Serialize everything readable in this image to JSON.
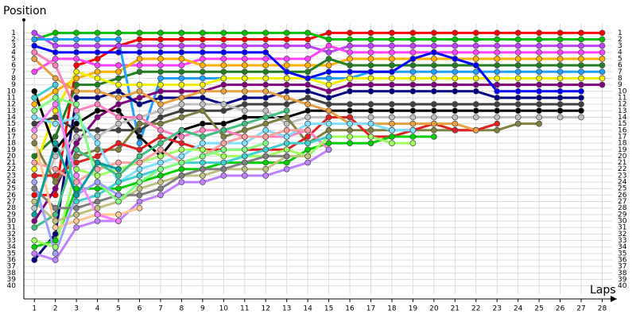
{
  "chart_data": {
    "type": "line",
    "y_label": "Position",
    "x_label": "Laps",
    "x": [
      1,
      2,
      3,
      4,
      5,
      6,
      7,
      8,
      9,
      10,
      11,
      12,
      13,
      14,
      15,
      16,
      17,
      18,
      19,
      20,
      21,
      22,
      23,
      24,
      25,
      26,
      27,
      28
    ],
    "xlim": [
      0.5,
      28.7
    ],
    "xticks": [
      1,
      2,
      3,
      4,
      5,
      6,
      7,
      8,
      9,
      10,
      11,
      12,
      13,
      14,
      15,
      16,
      17,
      18,
      19,
      20,
      21,
      22,
      23,
      24,
      25,
      26,
      27,
      28
    ],
    "ylim": [
      42,
      -1
    ],
    "yticks": [
      1,
      2,
      3,
      4,
      5,
      6,
      7,
      8,
      9,
      10,
      11,
      12,
      13,
      14,
      15,
      16,
      17,
      18,
      19,
      20,
      21,
      22,
      23,
      24,
      25,
      26,
      27,
      28,
      29,
      30,
      31,
      32,
      33,
      34,
      35,
      36,
      37,
      38,
      39,
      40
    ],
    "grid": true,
    "series": [
      {
        "color": "#ff0000",
        "values": [
          26,
          26,
          6,
          5,
          3,
          2,
          2,
          2,
          2,
          2,
          2,
          2,
          2,
          2,
          1,
          1,
          1,
          1,
          1,
          1,
          1,
          1,
          1,
          1,
          1,
          1,
          1,
          1
        ]
      },
      {
        "color": "#00c000",
        "values": [
          2,
          1,
          1,
          1,
          1,
          1,
          1,
          1,
          1,
          1,
          1,
          1,
          1,
          1,
          2,
          2,
          2,
          2,
          2,
          2,
          2,
          2,
          2,
          2,
          2,
          2,
          2,
          2
        ]
      },
      {
        "color": "#c040ff",
        "values": [
          1,
          3,
          3,
          3,
          3,
          3,
          3,
          3,
          3,
          3,
          3,
          3,
          3,
          3,
          4,
          3,
          3,
          3,
          3,
          3,
          3,
          3,
          3,
          3,
          3,
          3,
          3,
          3
        ]
      },
      {
        "color": "#ff40ff",
        "values": [
          7,
          5,
          5,
          6,
          6,
          6,
          6,
          6,
          5,
          5,
          5,
          5,
          5,
          5,
          3,
          4,
          4,
          4,
          4,
          4,
          4,
          4,
          4,
          4,
          4,
          4,
          4,
          4
        ]
      },
      {
        "color": "#ffb000",
        "values": [
          12,
          10,
          8,
          7,
          7,
          5,
          5,
          5,
          6,
          6,
          6,
          6,
          6,
          6,
          6,
          5,
          5,
          5,
          5,
          5,
          5,
          5,
          5,
          5,
          5,
          5,
          5,
          5
        ]
      },
      {
        "color": "#208020",
        "values": [
          20,
          17,
          9,
          9,
          8,
          7,
          7,
          7,
          7,
          7,
          7,
          7,
          7,
          7,
          5,
          6,
          6,
          6,
          6,
          6,
          6,
          6,
          6,
          6,
          6,
          6,
          6,
          6
        ]
      },
      {
        "color": "#20a0ff",
        "values": [
          2,
          2,
          2,
          2,
          2,
          18,
          8,
          8,
          8,
          8,
          8,
          8,
          8,
          8,
          8,
          8,
          7,
          7,
          7,
          7,
          7,
          7,
          7,
          7,
          7,
          7,
          7,
          7
        ]
      },
      {
        "color": "#f0f000",
        "values": [
          22,
          13,
          7,
          8,
          9,
          9,
          9,
          9,
          9,
          8,
          8,
          8,
          8,
          8,
          9,
          8,
          8,
          8,
          8,
          8,
          8,
          8,
          8,
          8,
          8,
          8,
          8,
          8
        ]
      },
      {
        "color": "#800080",
        "values": [
          30,
          25,
          18,
          14,
          12,
          11,
          10,
          10,
          10,
          9,
          9,
          9,
          9,
          9,
          10,
          9,
          9,
          9,
          9,
          9,
          9,
          9,
          9,
          9,
          9,
          9,
          9,
          9
        ]
      },
      {
        "color": "#0000ff",
        "values": [
          3,
          4,
          4,
          4,
          4,
          4,
          4,
          4,
          4,
          4,
          4,
          4,
          7,
          8,
          7,
          7,
          7,
          7,
          5,
          4,
          5,
          6,
          10,
          10,
          10,
          10,
          10,
          null
        ]
      },
      {
        "color": "#000080",
        "values": [
          36,
          32,
          11,
          11,
          10,
          12,
          11,
          11,
          11,
          12,
          11,
          11,
          10,
          10,
          11,
          10,
          10,
          10,
          10,
          10,
          10,
          10,
          11,
          11,
          11,
          11,
          11,
          null
        ]
      },
      {
        "color": "#404040",
        "values": [
          15,
          14,
          16,
          16,
          16,
          16,
          14,
          13,
          13,
          13,
          12,
          12,
          12,
          11,
          12,
          12,
          12,
          12,
          12,
          12,
          12,
          12,
          12,
          12,
          12,
          12,
          12,
          null
        ]
      },
      {
        "color": "#000000",
        "values": [
          10,
          19,
          15,
          13,
          13,
          17,
          20,
          16,
          15,
          15,
          14,
          14,
          14,
          13,
          13,
          13,
          13,
          13,
          13,
          13,
          13,
          13,
          13,
          13,
          13,
          13,
          13,
          null
        ]
      },
      {
        "color": "#c0c0c0",
        "values": [
          28,
          20,
          17,
          17,
          15,
          14,
          13,
          12,
          12,
          12,
          13,
          13,
          15,
          14,
          14,
          14,
          14,
          14,
          14,
          14,
          14,
          14,
          14,
          14,
          14,
          14,
          14,
          null
        ]
      },
      {
        "color": "#808040",
        "values": [
          18,
          24,
          20,
          19,
          19,
          15,
          15,
          14,
          13,
          17,
          16,
          15,
          14,
          18,
          16,
          16,
          16,
          16,
          16,
          16,
          16,
          16,
          16,
          15,
          15,
          null,
          null,
          null
        ]
      },
      {
        "color": "#e02020",
        "values": [
          23,
          23,
          21,
          20,
          18,
          19,
          17,
          18,
          19,
          19,
          19,
          19,
          19,
          17,
          14,
          14,
          17,
          17,
          16,
          15,
          16,
          16,
          15,
          null,
          null,
          null,
          null,
          null
        ]
      },
      {
        "color": "#e8a040",
        "values": [
          5,
          8,
          10,
          10,
          11,
          10,
          12,
          11,
          10,
          10,
          10,
          10,
          11,
          12,
          13,
          15,
          15,
          15,
          15,
          15,
          15,
          16,
          null,
          null,
          null,
          null,
          null,
          null
        ]
      },
      {
        "color": "#00d000",
        "values": [
          34,
          33,
          25,
          25,
          25,
          24,
          23,
          22,
          22,
          21,
          21,
          21,
          21,
          19,
          18,
          18,
          18,
          17,
          17,
          17,
          null,
          null,
          null,
          null,
          null,
          null,
          null,
          null
        ]
      },
      {
        "color": "#ff80c0",
        "values": [
          4,
          6,
          13,
          12,
          14,
          14,
          16,
          17,
          16,
          16,
          17,
          17,
          17,
          16,
          19,
          null,
          null,
          null,
          null,
          null,
          null,
          null,
          null,
          null,
          null,
          null,
          null,
          null
        ]
      },
      {
        "color": "#80e0ff",
        "values": [
          14,
          15,
          14,
          18,
          24,
          22,
          21,
          20,
          18,
          18,
          18,
          16,
          17,
          15,
          15,
          15,
          15,
          16,
          16,
          null,
          null,
          null,
          null,
          null,
          null,
          null,
          null,
          null
        ]
      },
      {
        "color": "#a0ff60",
        "values": [
          33,
          34,
          22,
          23,
          22,
          21,
          20,
          19,
          19,
          20,
          20,
          20,
          19,
          20,
          17,
          17,
          17,
          18,
          18,
          null,
          null,
          null,
          null,
          null,
          null,
          null,
          null,
          null
        ]
      },
      {
        "color": "#c080ff",
        "values": [
          35,
          36,
          31,
          30,
          30,
          27,
          26,
          24,
          24,
          23,
          23,
          23,
          22,
          21,
          19,
          null,
          null,
          null,
          null,
          null,
          null,
          null,
          null,
          null,
          null,
          null,
          null,
          null
        ]
      },
      {
        "color": "#ffa0a0",
        "values": [
          21,
          22,
          24,
          22,
          21,
          21,
          19,
          21,
          20,
          18,
          17,
          17,
          16,
          16,
          null,
          null,
          null,
          null,
          null,
          null,
          null,
          null,
          null,
          null,
          null,
          null,
          null,
          null
        ]
      },
      {
        "color": "#40d0d0",
        "values": [
          11,
          9,
          27,
          26,
          24,
          23,
          22,
          21,
          21,
          21,
          20,
          19,
          18,
          18,
          17,
          null,
          null,
          null,
          null,
          null,
          null,
          null,
          null,
          null,
          null,
          null,
          null,
          null
        ]
      },
      {
        "color": "#c0c080",
        "values": [
          27,
          30,
          29,
          28,
          27,
          25,
          24,
          23,
          23,
          22,
          22,
          22,
          20,
          20,
          null,
          null,
          null,
          null,
          null,
          null,
          null,
          null,
          null,
          null,
          null,
          null,
          null,
          null
        ]
      },
      {
        "color": "#808080",
        "values": [
          25,
          28,
          28,
          27,
          26,
          26,
          25,
          23,
          22,
          22,
          21,
          20,
          20,
          null,
          null,
          null,
          null,
          null,
          null,
          null,
          null,
          null,
          null,
          null,
          null,
          null,
          null,
          null
        ]
      },
      {
        "color": "#40c080",
        "values": [
          31,
          29,
          19,
          21,
          23,
          20,
          18,
          16,
          17,
          16,
          15,
          14,
          13,
          null,
          null,
          null,
          null,
          null,
          null,
          null,
          null,
          null,
          null,
          null,
          null,
          null,
          null,
          null
        ]
      },
      {
        "color": "#80ff80",
        "values": [
          13,
          11,
          12,
          24,
          27,
          24,
          22,
          21,
          20,
          19,
          19,
          18,
          null,
          null,
          null,
          null,
          null,
          null,
          null,
          null,
          null,
          null,
          null,
          null,
          null,
          null,
          null,
          null
        ]
      },
      {
        "color": "#ffc890",
        "values": [
          17,
          31,
          30,
          29,
          29,
          28,
          null,
          null,
          null,
          null,
          null,
          null,
          null,
          null,
          null,
          null,
          null,
          null,
          null,
          null,
          null,
          null,
          null,
          null,
          null,
          null,
          null,
          null
        ]
      },
      {
        "color": "#a0a0ff",
        "values": [
          24,
          35,
          26,
          24,
          26,
          null,
          null,
          null,
          null,
          null,
          null,
          null,
          null,
          null,
          null,
          null,
          null,
          null,
          null,
          null,
          null,
          null,
          null,
          null,
          null,
          null,
          null,
          null
        ]
      },
      {
        "color": "#ff80ff",
        "values": [
          16,
          12,
          23,
          29,
          30,
          null,
          null,
          null,
          null,
          null,
          null,
          null,
          null,
          null,
          null,
          null,
          null,
          null,
          null,
          null,
          null,
          null,
          null,
          null,
          null,
          null,
          null,
          null
        ]
      },
      {
        "color": "#00a0a0",
        "values": [
          29,
          18,
          26,
          21,
          22,
          null,
          null,
          null,
          null,
          null,
          null,
          null,
          null,
          null,
          null,
          null,
          null,
          null,
          null,
          null,
          null,
          null,
          null,
          null,
          null,
          null,
          null,
          null
        ]
      }
    ]
  }
}
